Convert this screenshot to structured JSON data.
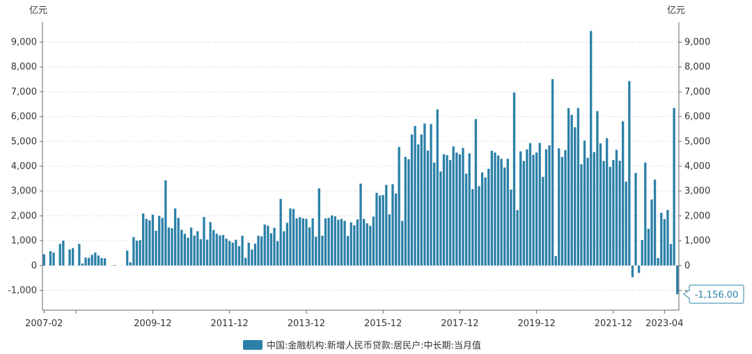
{
  "chart_data": {
    "type": "bar",
    "left_unit": "亿元",
    "right_unit": "亿元",
    "series": [
      {
        "name": "中国:金融机构:新增人民币贷款:居民户:中长期:当月值",
        "color": "#2b80a8",
        "values": [
          450,
          null,
          580,
          520,
          null,
          870,
          1000,
          null,
          650,
          700,
          null,
          870,
          80,
          320,
          310,
          430,
          520,
          400,
          300,
          290,
          null,
          null,
          20,
          null,
          null,
          null,
          600,
          130,
          1150,
          1000,
          1020,
          2100,
          1880,
          1820,
          2050,
          1400,
          2000,
          1920,
          3430,
          1530,
          1500,
          2300,
          1920,
          1440,
          1280,
          1120,
          1530,
          1210,
          1380,
          1060,
          1950,
          1040,
          1750,
          1430,
          1280,
          1210,
          1230,
          1080,
          990,
          920,
          1040,
          780,
          1200,
          310,
          920,
          640,
          880,
          1200,
          1170,
          1650,
          1600,
          1300,
          1520,
          980,
          2680,
          1380,
          1720,
          2300,
          2280,
          1900,
          1950,
          1900,
          1880,
          1540,
          1900,
          1160,
          3110,
          1200,
          1900,
          1920,
          2020,
          1980,
          1840,
          1880,
          1800,
          1190,
          1740,
          1620,
          1860,
          3300,
          1880,
          1700,
          1600,
          1970,
          2930,
          2820,
          2840,
          3250,
          2060,
          3280,
          2900,
          4780,
          1800,
          4380,
          4280,
          5280,
          5620,
          4880,
          5280,
          5720,
          4630,
          5700,
          4150,
          6290,
          3790,
          4480,
          4450,
          4250,
          4800,
          4550,
          4480,
          4740,
          3700,
          4520,
          3080,
          5900,
          3200,
          3750,
          3550,
          3900,
          4620,
          4550,
          4430,
          4300,
          3950,
          4300,
          3060,
          6970,
          2230,
          4600,
          4210,
          4680,
          4930,
          4460,
          4550,
          4940,
          3570,
          4680,
          4840,
          7510,
          380,
          4720,
          4370,
          4650,
          6340,
          6070,
          5570,
          6340,
          4080,
          5030,
          4340,
          9450,
          4570,
          6220,
          4920,
          4210,
          5130,
          3970,
          4250,
          4660,
          4220,
          5810,
          3380,
          7430,
          -470,
          3730,
          -300,
          1030,
          4150,
          1480,
          2660,
          3460,
          300,
          2120,
          1870,
          2240,
          870,
          6350,
          -1156
        ]
      }
    ],
    "ylim": [
      -1800,
      9800
    ],
    "yticks": [
      -1000,
      0,
      1000,
      2000,
      3000,
      4000,
      5000,
      6000,
      7000,
      8000,
      9000
    ],
    "ytick_labels": [
      "-1,000",
      "0",
      "1,000",
      "2,000",
      "3,000",
      "4,000",
      "5,000",
      "6,000",
      "7,000",
      "8,000",
      "9,000"
    ],
    "xticks": [
      {
        "index": 0,
        "label": "2007-02"
      },
      {
        "index": 34,
        "label": "2009-12"
      },
      {
        "index": 58,
        "label": "2011-12"
      },
      {
        "index": 82,
        "label": "2013-12"
      },
      {
        "index": 106,
        "label": "2015-12"
      },
      {
        "index": 130,
        "label": "2017-12"
      },
      {
        "index": 154,
        "label": "2019-12"
      },
      {
        "index": 178,
        "label": "2021-12"
      },
      {
        "index": 194,
        "label": "2023-04"
      }
    ],
    "xtick_marks_unlabeled": [
      10
    ],
    "grid": true,
    "legend_position": "bottom-center",
    "last_value_callout": "-1,156.00"
  }
}
